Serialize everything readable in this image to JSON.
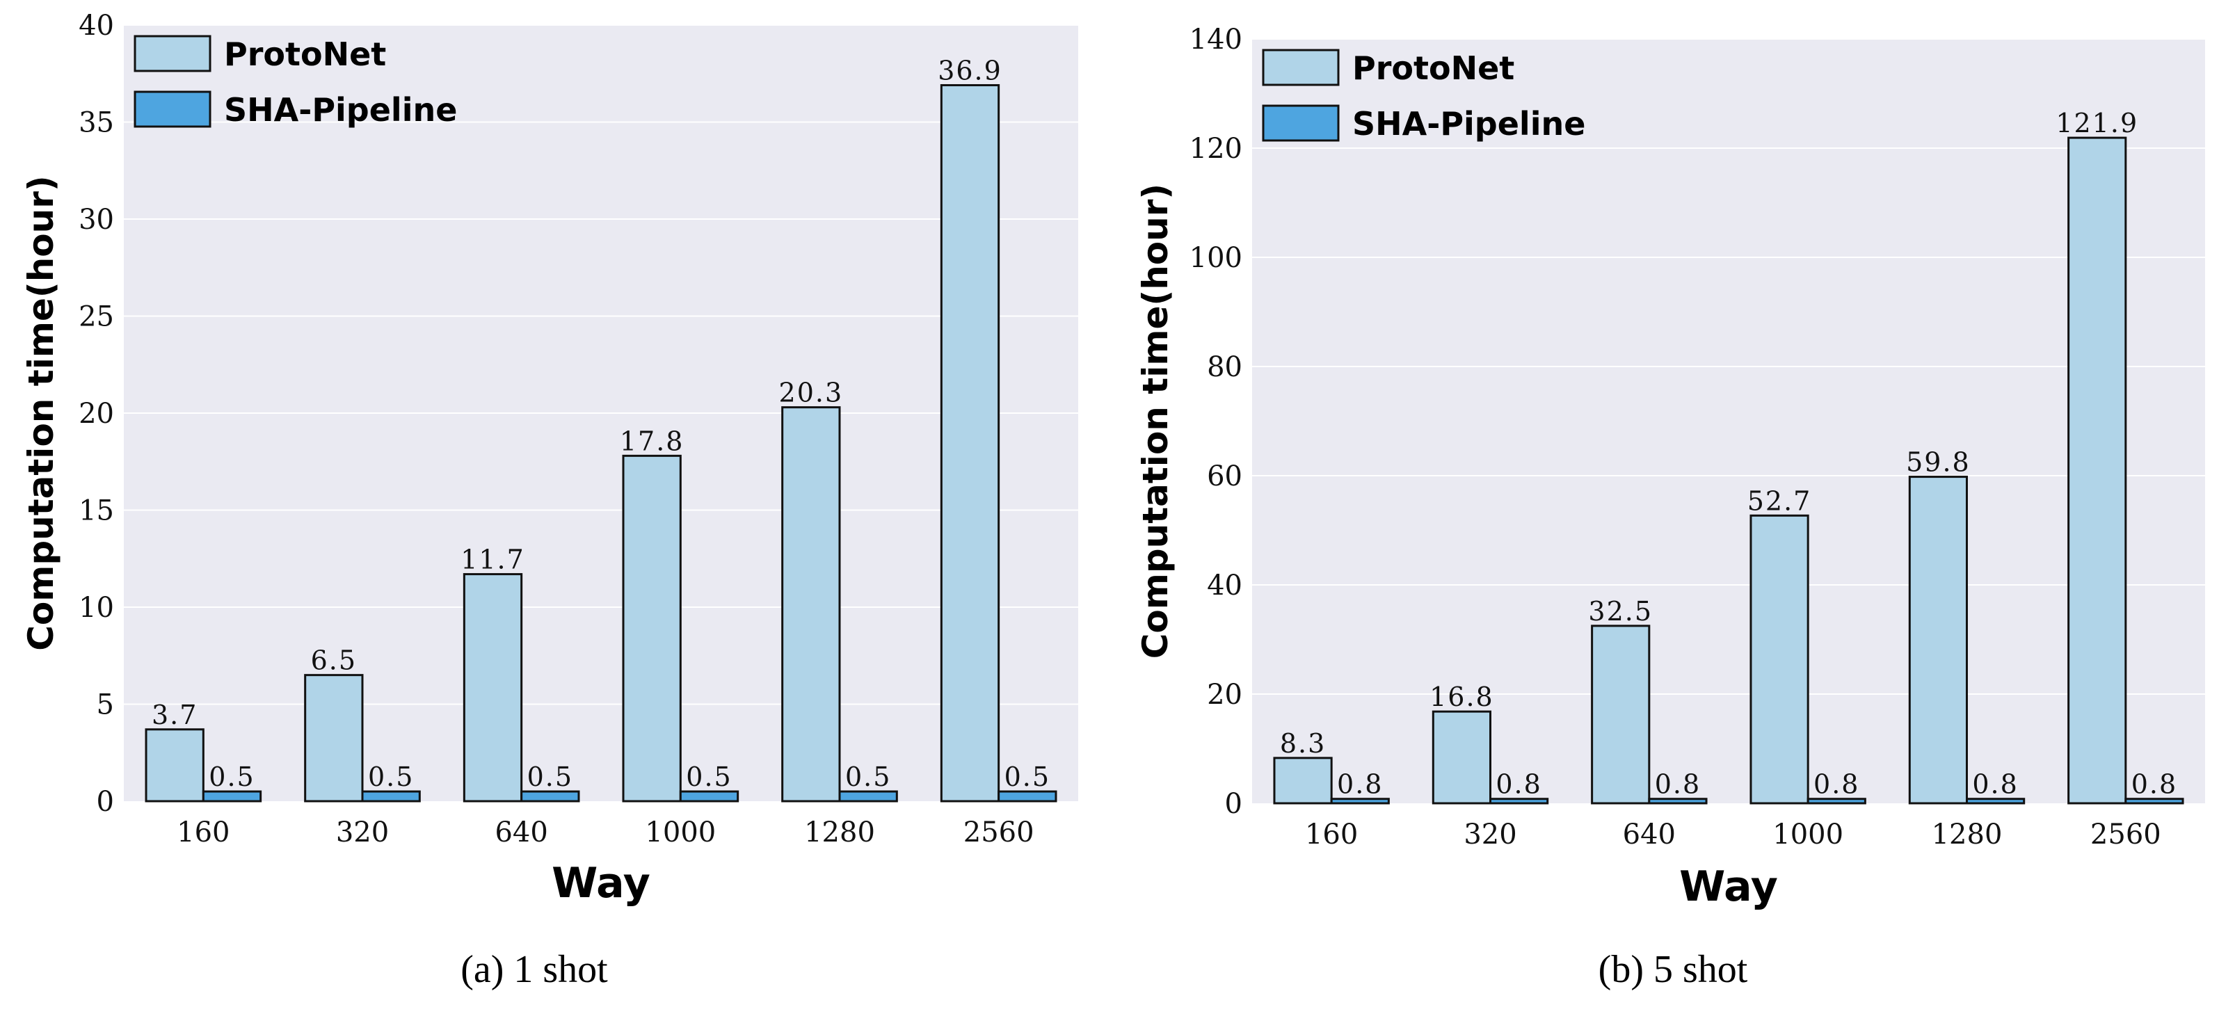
{
  "colors": {
    "background": "#eaeaf2",
    "grid": "#ffffff",
    "protonet": "#b0d4e8",
    "sha_pipeline": "#4ea5e0",
    "edge": "#111111"
  },
  "chart_data": [
    {
      "type": "bar",
      "caption": "(a)  1 shot",
      "xlabel": "Way",
      "ylabel": "Computation time(hour)",
      "categories": [
        "160",
        "320",
        "640",
        "1000",
        "1280",
        "2560"
      ],
      "ylim": [
        0,
        40
      ],
      "yticks": [
        "0",
        "5",
        "10",
        "15",
        "20",
        "25",
        "30",
        "35",
        "40"
      ],
      "legend_position": "top-left",
      "series": [
        {
          "name": "ProtoNet",
          "values": [
            3.7,
            6.5,
            11.7,
            17.8,
            20.3,
            36.9
          ],
          "labels": [
            "3.7",
            "6.5",
            "11.7",
            "17.8",
            "20.3",
            "36.9"
          ]
        },
        {
          "name": "SHA-Pipeline",
          "values": [
            0.5,
            0.5,
            0.5,
            0.5,
            0.5,
            0.5
          ],
          "labels": [
            "0.5",
            "0.5",
            "0.5",
            "0.5",
            "0.5",
            "0.5"
          ]
        }
      ]
    },
    {
      "type": "bar",
      "caption": "(b)  5 shot",
      "xlabel": "Way",
      "ylabel": "Computation time(hour)",
      "categories": [
        "160",
        "320",
        "640",
        "1000",
        "1280",
        "2560"
      ],
      "ylim": [
        0,
        140
      ],
      "yticks": [
        "0",
        "20",
        "40",
        "60",
        "80",
        "100",
        "120",
        "140"
      ],
      "legend_position": "top-left",
      "series": [
        {
          "name": "ProtoNet",
          "values": [
            8.3,
            16.8,
            32.5,
            52.7,
            59.8,
            121.9
          ],
          "labels": [
            "8.3",
            "16.8",
            "32.5",
            "52.7",
            "59.8",
            "121.9"
          ]
        },
        {
          "name": "SHA-Pipeline",
          "values": [
            0.8,
            0.8,
            0.8,
            0.8,
            0.8,
            0.8
          ],
          "labels": [
            "0.8",
            "0.8",
            "0.8",
            "0.8",
            "0.8",
            "0.8"
          ]
        }
      ]
    }
  ]
}
